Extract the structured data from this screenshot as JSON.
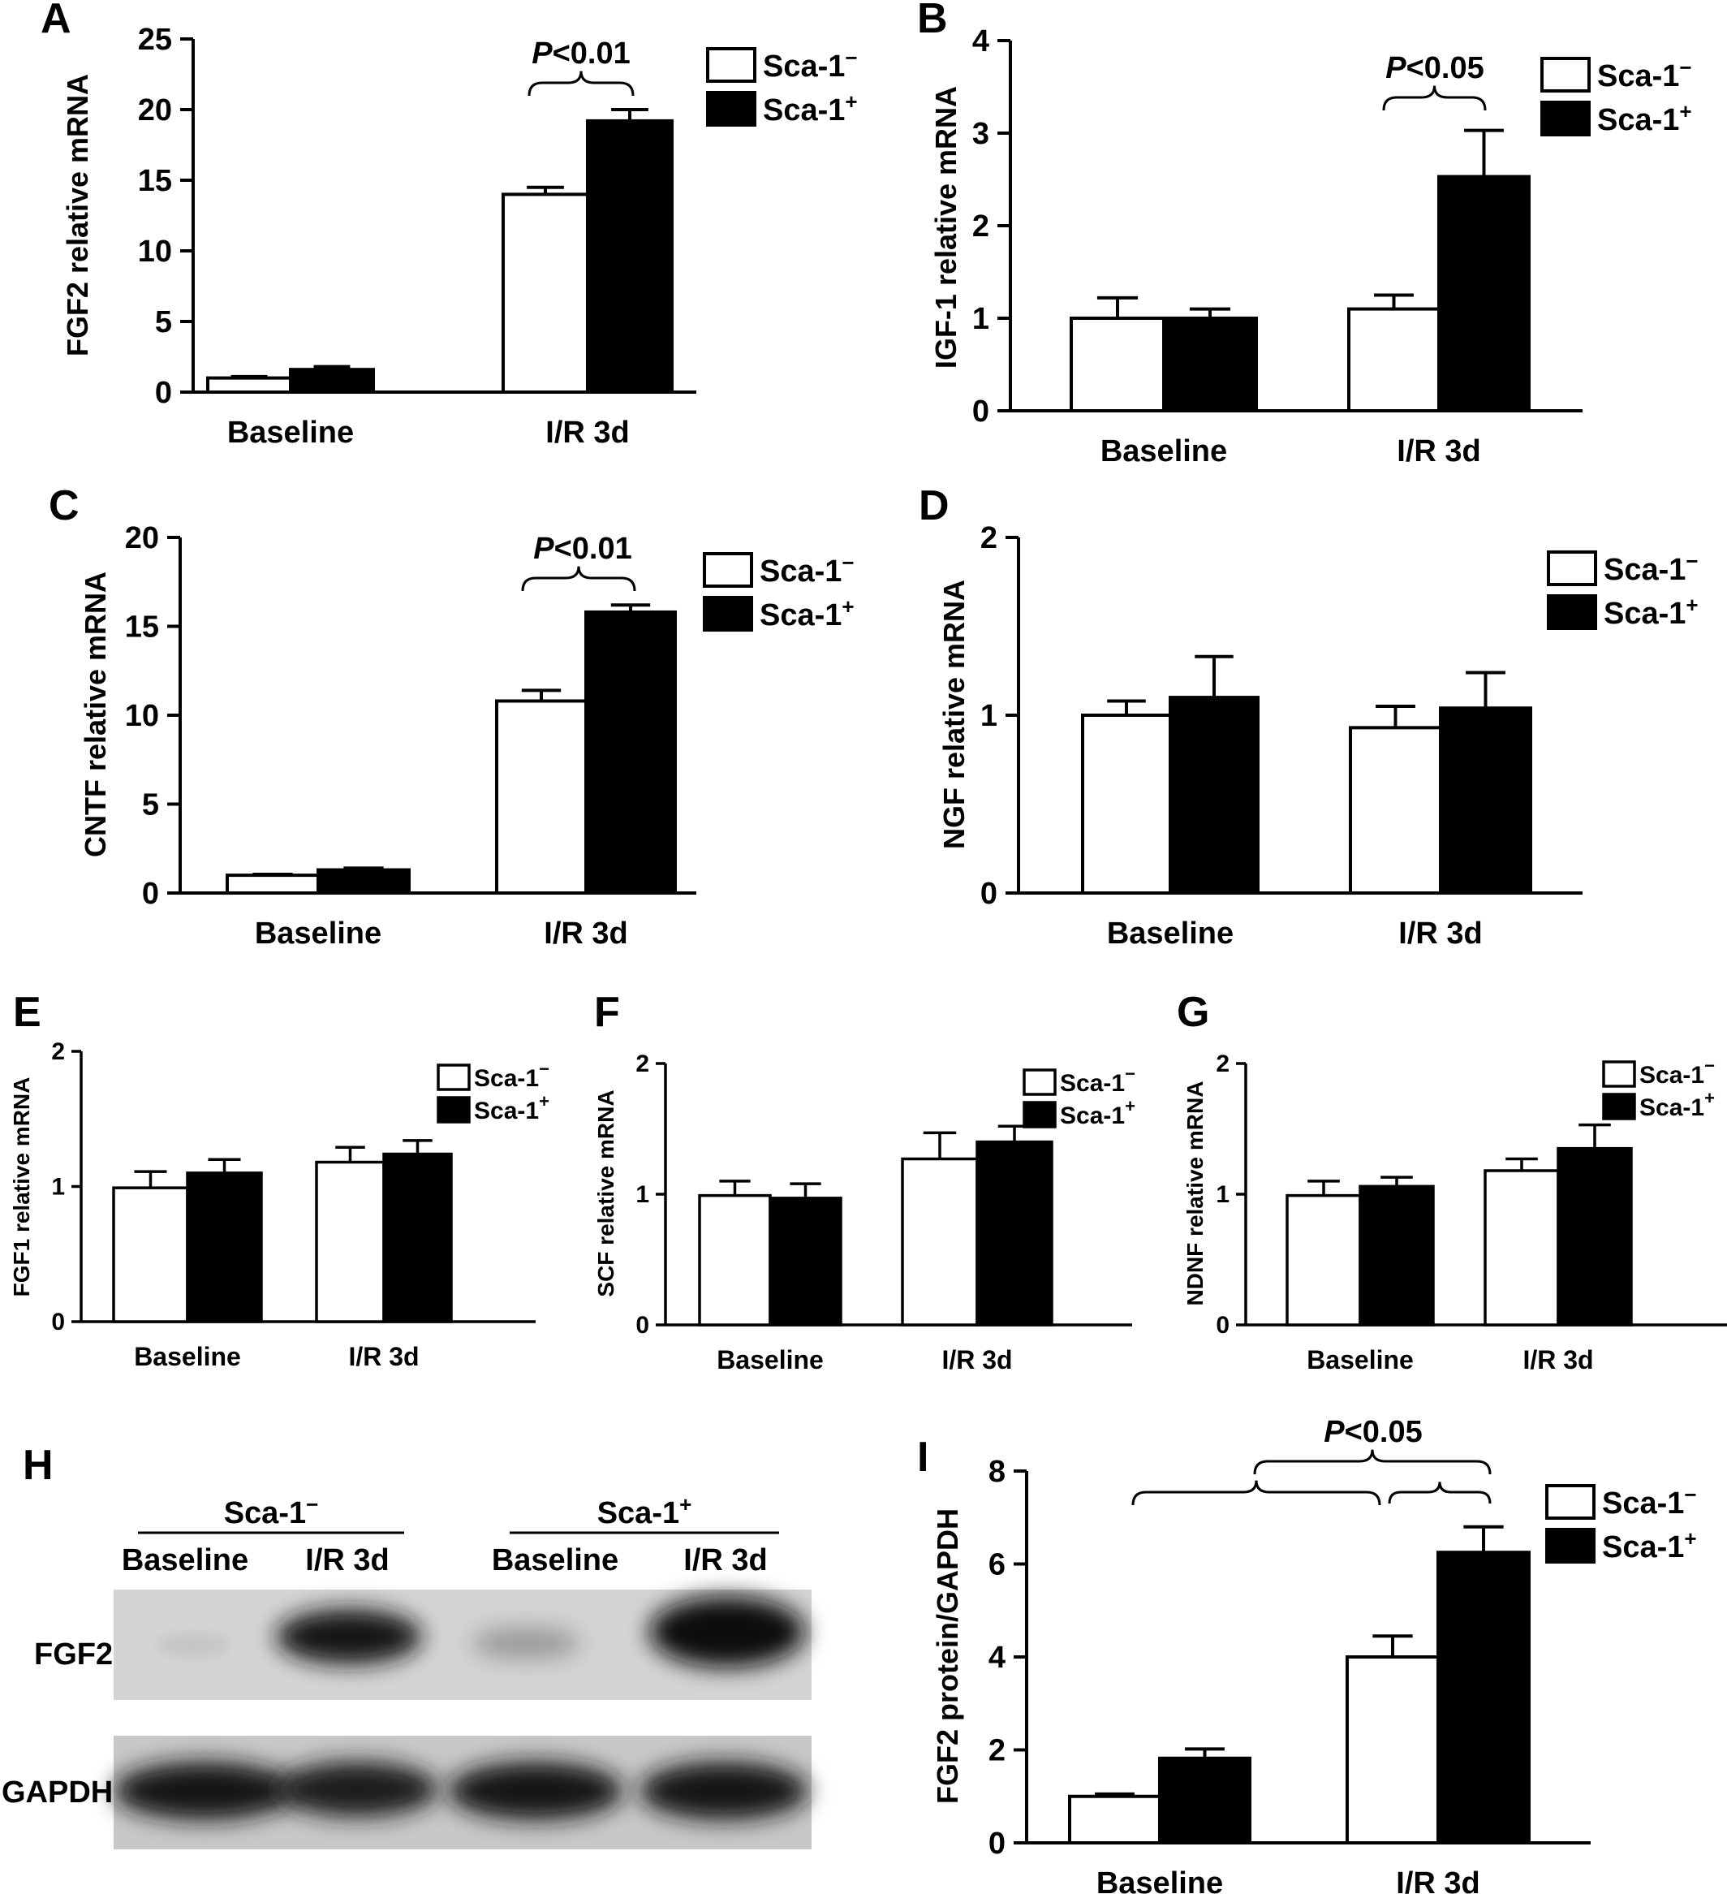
{
  "series_names": [
    "Sca-1−",
    "Sca-1+"
  ],
  "legend": {
    "neg": "Sca-1",
    "neg_sup": "−",
    "pos": "Sca-1",
    "pos_sup": "+"
  },
  "colors": {
    "neg": "#ffffff",
    "pos": "#000000",
    "stroke": "#000000"
  },
  "chart_data": [
    {
      "panel": "A",
      "type": "bar",
      "categories": [
        "Baseline",
        "I/R 3d"
      ],
      "ylabel": "FGF2 relative mRNA",
      "ylim": [
        0,
        25
      ],
      "yticks": [
        0,
        5,
        10,
        15,
        20,
        25
      ],
      "series": [
        {
          "name": "Sca-1−",
          "values": [
            1.0,
            14.0
          ],
          "errors": [
            0.1,
            0.5
          ]
        },
        {
          "name": "Sca-1+",
          "values": [
            1.6,
            19.2
          ],
          "errors": [
            0.2,
            0.8
          ]
        }
      ],
      "annotation": {
        "p": "P",
        "rest": "<0.01"
      }
    },
    {
      "panel": "B",
      "type": "bar",
      "categories": [
        "Baseline",
        "I/R 3d"
      ],
      "ylabel": "IGF-1 relative mRNA",
      "ylim": [
        0,
        4
      ],
      "yticks": [
        0,
        1,
        2,
        3,
        4
      ],
      "series": [
        {
          "name": "Sca-1−",
          "values": [
            1.0,
            1.1
          ],
          "errors": [
            0.22,
            0.15
          ]
        },
        {
          "name": "Sca-1+",
          "values": [
            1.0,
            2.53
          ],
          "errors": [
            0.1,
            0.5
          ]
        }
      ],
      "annotation": {
        "p": "P",
        "rest": "<0.05"
      }
    },
    {
      "panel": "C",
      "type": "bar",
      "categories": [
        "Baseline",
        "I/R 3d"
      ],
      "ylabel": "CNTF relative mRNA",
      "ylim": [
        0,
        20
      ],
      "yticks": [
        0,
        5,
        10,
        15,
        20
      ],
      "series": [
        {
          "name": "Sca-1−",
          "values": [
            1.0,
            10.8
          ],
          "errors": [
            0.05,
            0.6
          ]
        },
        {
          "name": "Sca-1+",
          "values": [
            1.3,
            15.8
          ],
          "errors": [
            0.1,
            0.4
          ]
        }
      ],
      "annotation": {
        "p": "P",
        "rest": "<0.01"
      }
    },
    {
      "panel": "D",
      "type": "bar",
      "categories": [
        "Baseline",
        "I/R 3d"
      ],
      "ylabel": "NGF relative mRNA",
      "ylim": [
        0,
        2
      ],
      "yticks": [
        0,
        1,
        2
      ],
      "series": [
        {
          "name": "Sca-1−",
          "values": [
            1.0,
            0.93
          ],
          "errors": [
            0.08,
            0.12
          ]
        },
        {
          "name": "Sca-1+",
          "values": [
            1.1,
            1.04
          ],
          "errors": [
            0.23,
            0.2
          ]
        }
      ]
    },
    {
      "panel": "E",
      "type": "bar",
      "categories": [
        "Baseline",
        "I/R 3d"
      ],
      "ylabel": "FGF1 relative mRNA",
      "ylim": [
        0,
        2
      ],
      "yticks": [
        0,
        1,
        2
      ],
      "series": [
        {
          "name": "Sca-1−",
          "values": [
            0.99,
            1.18
          ],
          "errors": [
            0.12,
            0.11
          ]
        },
        {
          "name": "Sca-1+",
          "values": [
            1.1,
            1.24
          ],
          "errors": [
            0.1,
            0.1
          ]
        }
      ]
    },
    {
      "panel": "F",
      "type": "bar",
      "categories": [
        "Baseline",
        "I/R 3d"
      ],
      "ylabel": "SCF relative mRNA",
      "ylim": [
        0,
        2
      ],
      "yticks": [
        0,
        1,
        2
      ],
      "series": [
        {
          "name": "Sca-1−",
          "values": [
            0.99,
            1.27
          ],
          "errors": [
            0.11,
            0.2
          ]
        },
        {
          "name": "Sca-1+",
          "values": [
            0.97,
            1.4
          ],
          "errors": [
            0.11,
            0.12
          ]
        }
      ]
    },
    {
      "panel": "G",
      "type": "bar",
      "categories": [
        "Baseline",
        "I/R 3d"
      ],
      "ylabel": "NDNF relative mRNA",
      "ylim": [
        0,
        2
      ],
      "yticks": [
        0,
        1,
        2
      ],
      "series": [
        {
          "name": "Sca-1−",
          "values": [
            0.99,
            1.18
          ],
          "errors": [
            0.11,
            0.09
          ]
        },
        {
          "name": "Sca-1+",
          "values": [
            1.06,
            1.35
          ],
          "errors": [
            0.07,
            0.18
          ]
        }
      ]
    },
    {
      "panel": "I",
      "type": "bar",
      "categories": [
        "Baseline",
        "I/R 3d"
      ],
      "ylabel": "FGF2 protein/GAPDH",
      "ylim": [
        0,
        8
      ],
      "yticks": [
        0,
        2,
        4,
        6,
        8
      ],
      "series": [
        {
          "name": "Sca-1−",
          "values": [
            1.0,
            4.0
          ],
          "errors": [
            0.05,
            0.45
          ]
        },
        {
          "name": "Sca-1+",
          "values": [
            1.82,
            6.25
          ],
          "errors": [
            0.2,
            0.55
          ]
        }
      ],
      "annotation": {
        "p": "P",
        "rest": "<0.05"
      }
    }
  ],
  "blot": {
    "panel": "H",
    "groups": [
      "Sca-1−",
      "Sca-1+"
    ],
    "group_text": {
      "neg": "Sca-1",
      "neg_sup": "−",
      "pos": "Sca-1",
      "pos_sup": "+"
    },
    "lanes": [
      "Baseline",
      "I/R 3d",
      "Baseline",
      "I/R 3d"
    ],
    "rows": [
      "FGF2",
      "GAPDH"
    ]
  }
}
